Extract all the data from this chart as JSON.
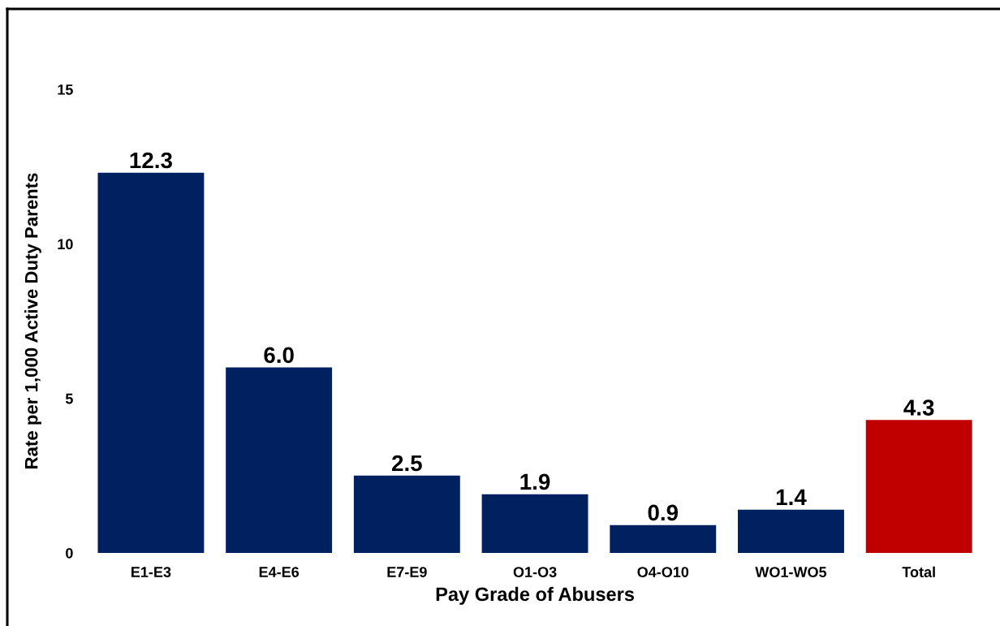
{
  "chart_data": {
    "type": "bar",
    "xlabel": "Pay Grade of Abusers",
    "ylabel": "Rate per 1,000 Active Duty Parents",
    "categories": [
      "E1-E3",
      "E4-E6",
      "E7-E9",
      "O1-O3",
      "O4-O10",
      "WO1-WO5",
      "Total"
    ],
    "values": [
      12.3,
      6.0,
      2.5,
      1.9,
      0.9,
      1.4,
      4.3
    ],
    "value_labels": [
      "12.3",
      "6.0",
      "2.5",
      "1.9",
      "0.9",
      "1.4",
      "4.3"
    ],
    "colors": [
      "#002060",
      "#002060",
      "#002060",
      "#002060",
      "#002060",
      "#002060",
      "#c00000"
    ],
    "ylim": [
      0,
      15
    ],
    "yticks": [
      0,
      5,
      10,
      15
    ],
    "grid": false,
    "legend": false
  }
}
